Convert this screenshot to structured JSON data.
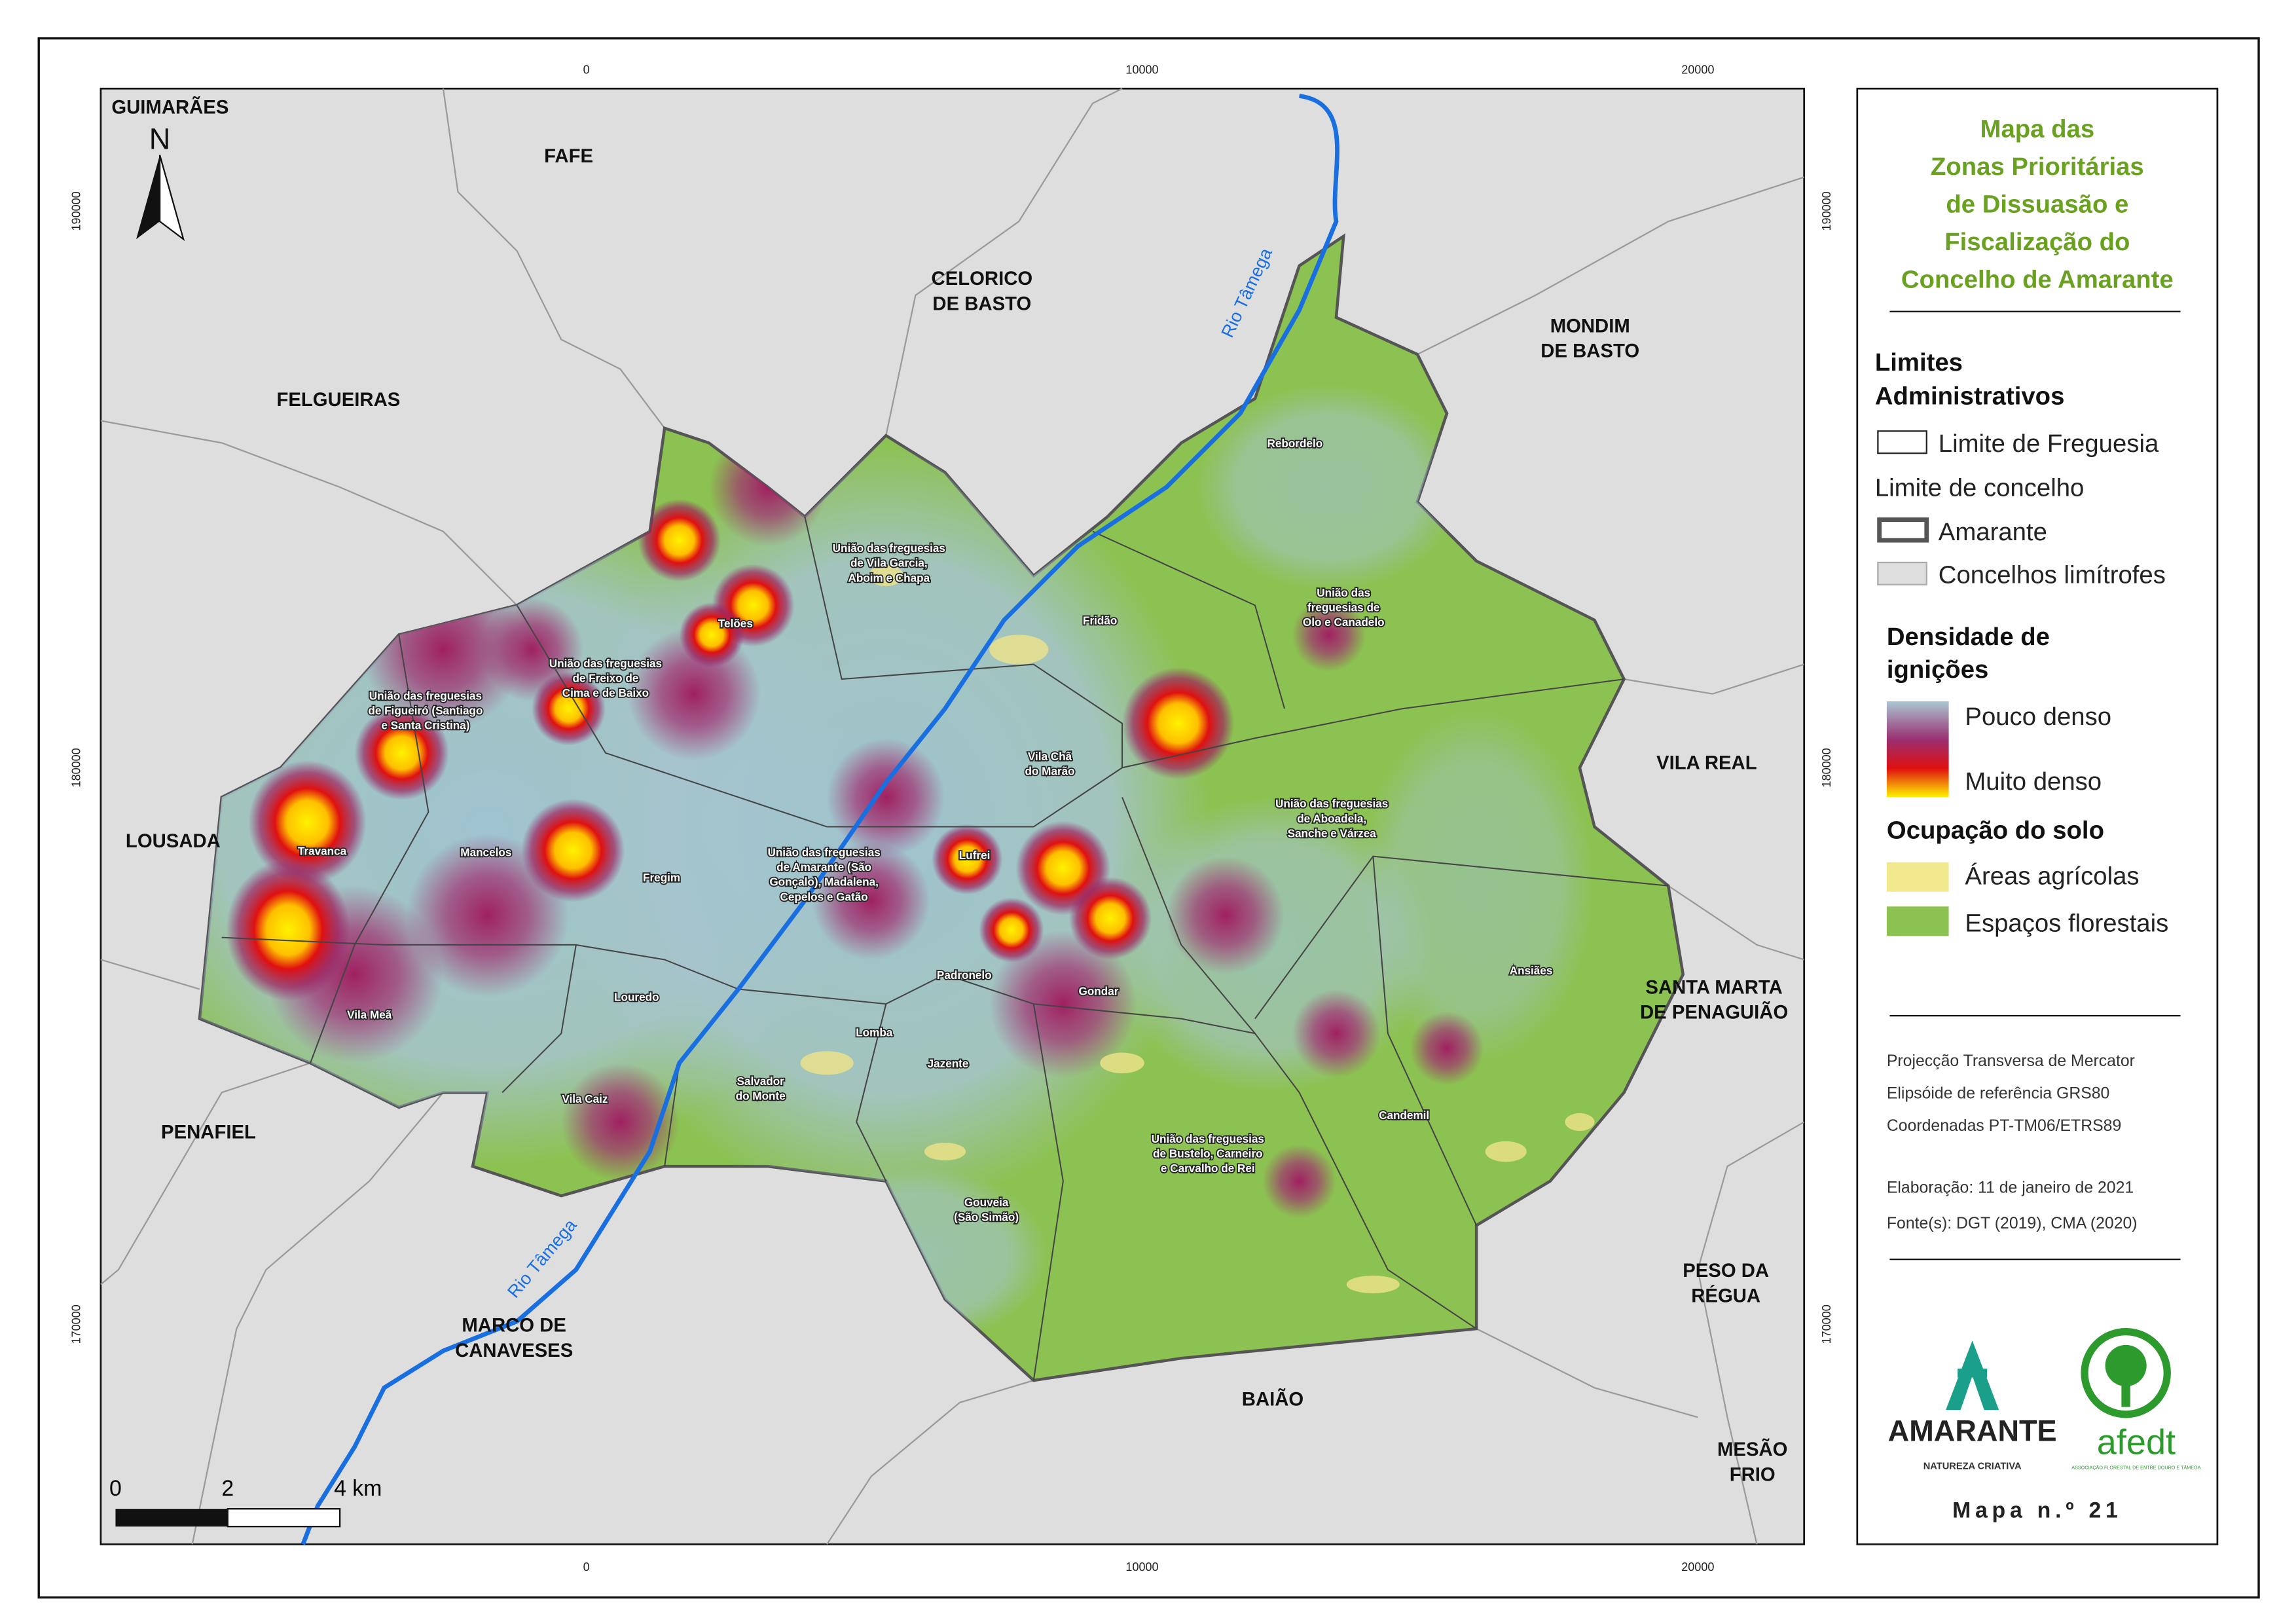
{
  "title": [
    "Mapa das",
    "Zonas Prioritárias",
    "de Dissuasão e",
    "Fiscalização do",
    "Concelho de Amarante"
  ],
  "north": "N",
  "coordinates": {
    "x_ticks": [
      0,
      10000,
      20000
    ],
    "y_ticks": [
      190000,
      180000,
      170000
    ]
  },
  "scale_bar": [
    "0",
    "2",
    "4 km"
  ],
  "neighbors": [
    [
      "GUIMARÃES"
    ],
    [
      "FAFE"
    ],
    [
      "CELORICO",
      "DE BASTO"
    ],
    [
      "MONDIM",
      "DE BASTO"
    ],
    [
      "FELGUEIRAS"
    ],
    [
      "LOUSADA"
    ],
    [
      "VILA REAL"
    ],
    [
      "SANTA MARTA",
      "DE PENAGUIÃO"
    ],
    [
      "PENAFIEL"
    ],
    [
      "PESO DA",
      "RÉGUA"
    ],
    [
      "MARCO DE",
      "CANAVESES"
    ],
    [
      "BAIÃO"
    ],
    [
      "MESÃO",
      "FRIO"
    ]
  ],
  "rivers": [
    "Rio Tâmega",
    "Rio Tâmega"
  ],
  "parishes": [
    [
      "Rebordelo"
    ],
    [
      "União das freguesias",
      "de Vila Garcia,",
      "Aboim e Chapa"
    ],
    [
      "União das",
      "freguesias de",
      "Olo e Canadelo"
    ],
    [
      "Telões"
    ],
    [
      "Fridão"
    ],
    [
      "União das freguesias",
      "de Freixo de",
      "Cima e de Baixo"
    ],
    [
      "União das freguesias",
      "de Figueiró (Santiago",
      "e Santa Cristina)"
    ],
    [
      "Vila Chã",
      "do Marão"
    ],
    [
      "União das freguesias",
      "de Aboadela,",
      "Sanche e Várzea"
    ],
    [
      "Travanca"
    ],
    [
      "Mancelos"
    ],
    [
      "União das freguesias",
      "de Amarante (São",
      "Gonçalo), Madalena,",
      "Cepelos e Gatão"
    ],
    [
      "Lufrei"
    ],
    [
      "Fregim"
    ],
    [
      "Ansiães"
    ],
    [
      "Padronelo"
    ],
    [
      "Gondar"
    ],
    [
      "Louredo"
    ],
    [
      "Vila Meã"
    ],
    [
      "Lomba"
    ],
    [
      "Jazente"
    ],
    [
      "Salvador",
      "do Monte"
    ],
    [
      "Vila Caiz"
    ],
    [
      "Candemil"
    ],
    [
      "União das freguesias",
      "de Bustelo, Carneiro",
      "e Carvalho de Rei"
    ],
    [
      "Gouveia",
      "(São Simão)"
    ]
  ],
  "legend": {
    "admin_title": [
      "Limites",
      "Administrativos"
    ],
    "parish_limit": "Limite de Freguesia",
    "municipal_limit": "Limite de concelho",
    "amarante": "Amarante",
    "neighbors": "Concelhos limítrofes",
    "density_title": [
      "Densidade de",
      "ignições"
    ],
    "low": "Pouco denso",
    "high": "Muito denso",
    "land_title": "Ocupação do solo",
    "agri": "Áreas agrícolas",
    "forest": "Espaços florestais"
  },
  "notes": [
    "Projecção Transversa de Mercator",
    "Elipsóide de referência GRS80",
    "Coordenadas PT-TM06/ETRS89",
    "Elaboração: 11 de janeiro de 2021",
    "Fonte(s): DGT (2019), CMA (2020)"
  ],
  "logos": {
    "amarante": "AMARANTE",
    "amarante_tag": "NATUREZA CRIATIVA",
    "afedt": "afedt",
    "afedt_tag": "ASSOCIAÇÃO FLORESTAL DE ENTRE DOURO E TÂMEGA"
  },
  "map_number": "Mapa n.º 21"
}
